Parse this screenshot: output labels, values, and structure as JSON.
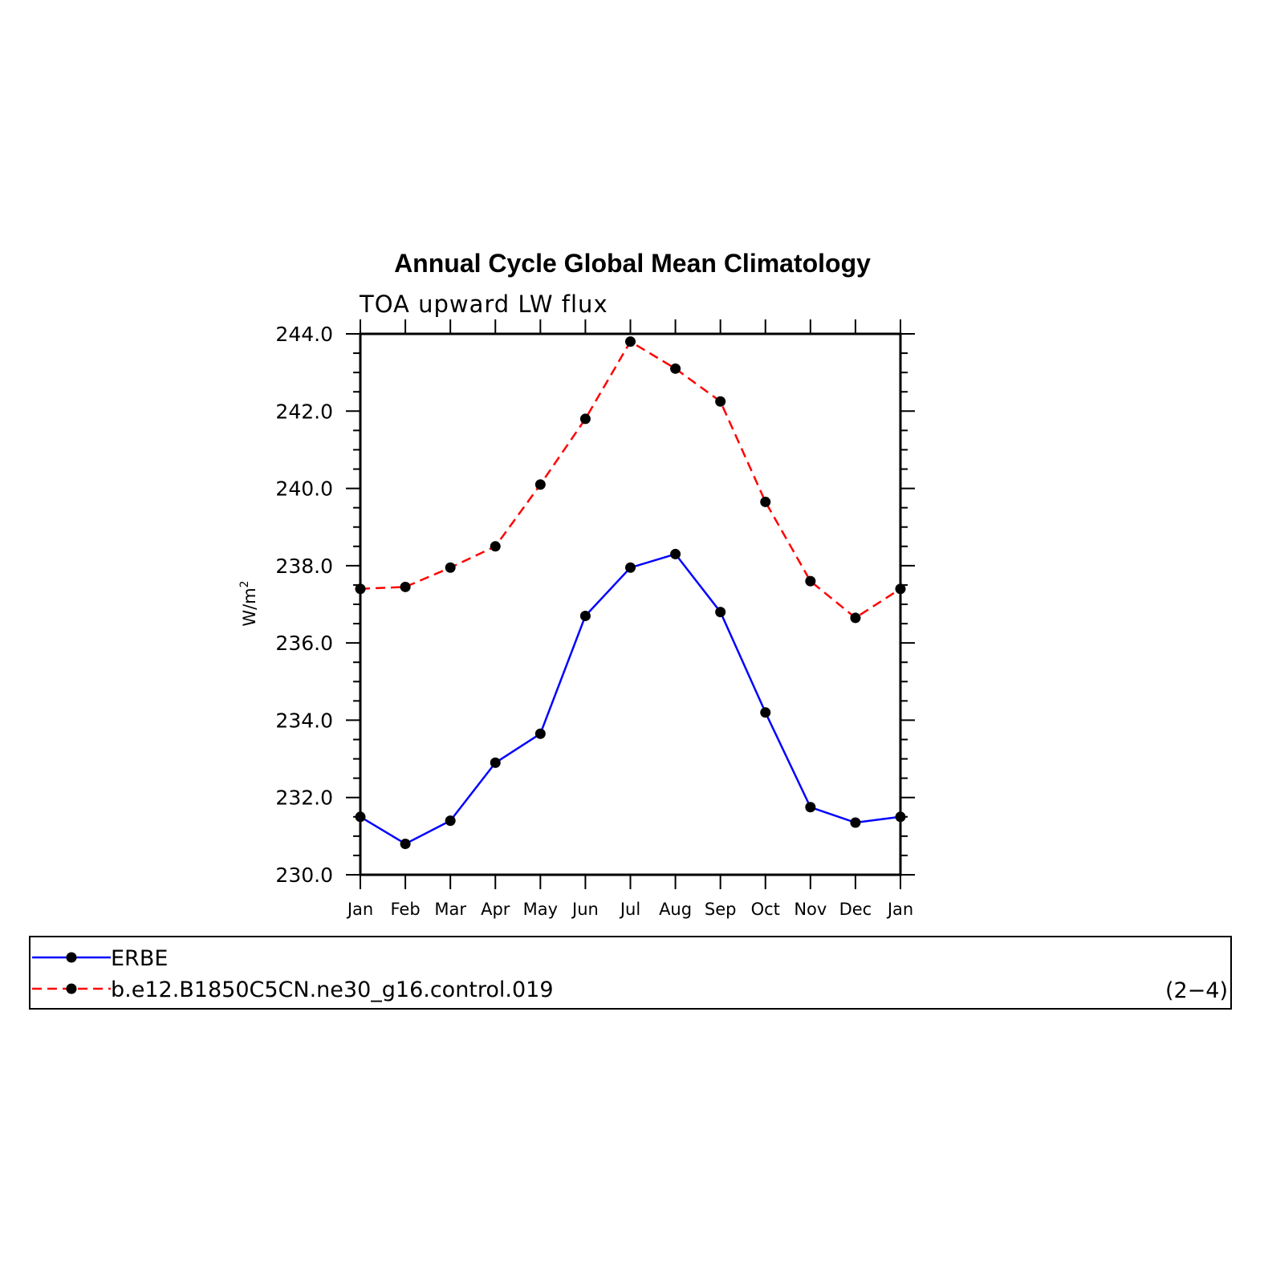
{
  "chart_data": {
    "type": "line",
    "title": "Annual Cycle Global Mean Climatology",
    "subtitle": "TOA upward LW flux",
    "ylabel_main": "W/m",
    "ylabel_sup": "2",
    "xlabel": "",
    "categories": [
      "Jan",
      "Feb",
      "Mar",
      "Apr",
      "May",
      "Jun",
      "Jul",
      "Aug",
      "Sep",
      "Oct",
      "Nov",
      "Dec",
      "Jan"
    ],
    "ylim": [
      230.0,
      244.0
    ],
    "yticks": [
      "230.0",
      "232.0",
      "234.0",
      "236.0",
      "238.0",
      "240.0",
      "242.0",
      "244.0"
    ],
    "series": [
      {
        "name": "ERBE",
        "color": "#0000ff",
        "dash": "solid",
        "values": [
          231.5,
          230.8,
          231.4,
          232.9,
          233.65,
          236.7,
          237.95,
          238.3,
          236.8,
          234.2,
          231.75,
          231.35,
          231.5
        ]
      },
      {
        "name": "b.e12.B1850C5CN.ne30_g16.control.019",
        "color": "#ff0000",
        "dash": "dashed",
        "values": [
          237.4,
          237.45,
          237.95,
          238.5,
          240.1,
          241.8,
          243.8,
          243.1,
          242.25,
          239.65,
          237.6,
          236.65,
          237.4
        ]
      }
    ],
    "panel_label": "(2−4)"
  }
}
